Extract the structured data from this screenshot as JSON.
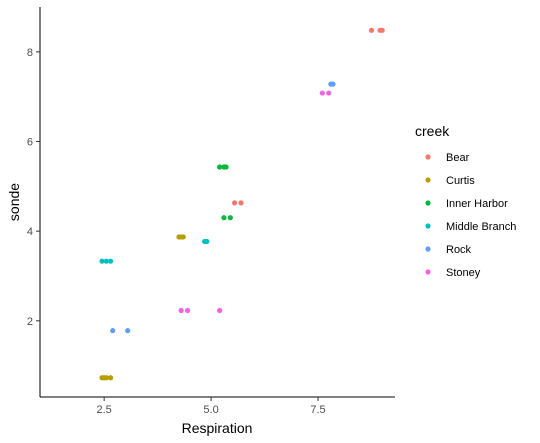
{
  "chart_data": {
    "type": "scatter",
    "title": "",
    "xlabel": "Respiration",
    "ylabel": "sonde",
    "xlim": [
      1.0,
      9.3
    ],
    "ylim": [
      0.3,
      9.0
    ],
    "xticks": [
      2.5,
      5.0,
      7.5
    ],
    "xtick_labels": [
      "2.5",
      "5.0",
      "7.5"
    ],
    "yticks": [
      2,
      4,
      6,
      8
    ],
    "ytick_labels": [
      "2",
      "4",
      "6",
      "8"
    ],
    "grid": false,
    "legend": {
      "title": "creek",
      "placement": "right"
    },
    "series": [
      {
        "name": "Bear",
        "color": "#F8766D",
        "points": [
          [
            8.75,
            8.48
          ],
          [
            8.95,
            8.48
          ],
          [
            9.0,
            8.48
          ],
          [
            5.55,
            4.63
          ],
          [
            5.7,
            4.63
          ]
        ]
      },
      {
        "name": "Curtis",
        "color": "#B79F00",
        "points": [
          [
            2.45,
            0.73
          ],
          [
            2.5,
            0.73
          ],
          [
            2.55,
            0.73
          ],
          [
            2.65,
            0.73
          ],
          [
            4.25,
            3.87
          ],
          [
            4.3,
            3.87
          ],
          [
            4.35,
            3.87
          ]
        ]
      },
      {
        "name": "Inner Harbor",
        "color": "#00BA38",
        "points": [
          [
            5.2,
            5.43
          ],
          [
            5.3,
            5.43
          ],
          [
            5.35,
            5.43
          ],
          [
            5.3,
            4.3
          ],
          [
            5.45,
            4.3
          ]
        ]
      },
      {
        "name": "Middle Branch",
        "color": "#00BFC4",
        "points": [
          [
            2.45,
            3.33
          ],
          [
            2.55,
            3.33
          ],
          [
            2.65,
            3.33
          ],
          [
            4.85,
            3.77
          ],
          [
            4.9,
            3.77
          ]
        ]
      },
      {
        "name": "Rock",
        "color": "#619CFF",
        "points": [
          [
            2.7,
            1.78
          ],
          [
            3.05,
            1.78
          ],
          [
            7.8,
            7.28
          ],
          [
            7.85,
            7.28
          ]
        ]
      },
      {
        "name": "Stoney",
        "color": "#F564E3",
        "points": [
          [
            4.3,
            2.23
          ],
          [
            4.45,
            2.23
          ],
          [
            5.2,
            2.23
          ],
          [
            7.6,
            7.08
          ],
          [
            7.75,
            7.08
          ]
        ]
      }
    ]
  }
}
